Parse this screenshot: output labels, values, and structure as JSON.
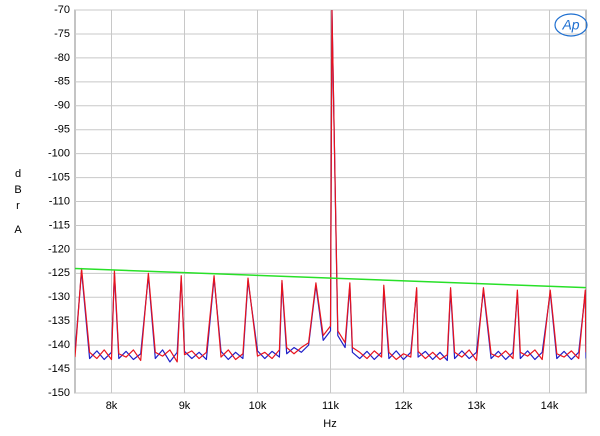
{
  "chart_data": {
    "type": "line",
    "logo": "Ap",
    "xlabel": "Hz",
    "ylabel": [
      "d",
      "B",
      "r",
      "A"
    ],
    "xlim": [
      7500,
      14500
    ],
    "ylim": [
      -150,
      -70
    ],
    "xticks": [
      {
        "value": 8000,
        "label": "8k"
      },
      {
        "value": 9000,
        "label": "9k"
      },
      {
        "value": 10000,
        "label": "10k"
      },
      {
        "value": 11000,
        "label": "11k"
      },
      {
        "value": 12000,
        "label": "12k"
      },
      {
        "value": 13000,
        "label": "13k"
      },
      {
        "value": 14000,
        "label": "14k"
      }
    ],
    "yticks": [
      -70,
      -75,
      -80,
      -85,
      -90,
      -95,
      -100,
      -105,
      -110,
      -115,
      -120,
      -125,
      -130,
      -135,
      -140,
      -145,
      -150
    ],
    "grid": true,
    "x": [
      7500,
      7590,
      7700,
      7800,
      7900,
      8000,
      8040,
      8100,
      8200,
      8300,
      8400,
      8505,
      8600,
      8700,
      8800,
      8900,
      8955,
      9000,
      9100,
      9200,
      9300,
      9405,
      9500,
      9600,
      9700,
      9800,
      9870,
      10000,
      10100,
      10200,
      10300,
      10335,
      10400,
      10500,
      10600,
      10700,
      10800,
      10900,
      11000,
      11020,
      11100,
      11200,
      11265,
      11300,
      11400,
      11500,
      11600,
      11700,
      11730,
      11800,
      11900,
      12000,
      12100,
      12180,
      12200,
      12300,
      12400,
      12500,
      12600,
      12645,
      12700,
      12800,
      12900,
      13000,
      13095,
      13200,
      13300,
      13400,
      13500,
      13560,
      13600,
      13700,
      13800,
      13900,
      14010,
      14100,
      14200,
      14300,
      14400,
      14490,
      14500
    ],
    "series": [
      {
        "color": "#2020c8",
        "values": [
          -141.5,
          -124.5,
          -142.8,
          -141.2,
          -143,
          -141.5,
          -125,
          -142.8,
          -141.3,
          -143,
          -141.8,
          -125.5,
          -142.8,
          -141,
          -143.5,
          -141.5,
          -126,
          -141.3,
          -142.8,
          -141.5,
          -143,
          -126,
          -141.3,
          -143,
          -141.5,
          -142.8,
          -126.5,
          -141.2,
          -142.8,
          -141.3,
          -142.5,
          -127,
          -141.8,
          -140.5,
          -141.5,
          -140,
          -127.5,
          -139,
          -137,
          -70,
          -138,
          -140.5,
          -127.5,
          -141.5,
          -142.8,
          -141.3,
          -143,
          -141.5,
          -128,
          -142.8,
          -141.2,
          -143,
          -141.5,
          -128.5,
          -142.5,
          -141.3,
          -143,
          -141.5,
          -143.2,
          -128.5,
          -142.8,
          -141.2,
          -142.8,
          -141.5,
          -128.5,
          -142.8,
          -141.3,
          -143,
          -141.5,
          -129,
          -142.8,
          -141.2,
          -143,
          -141.5,
          -129,
          -142.8,
          -141.3,
          -143,
          -141.5,
          -129,
          -142.8
        ]
      },
      {
        "color": "#e8141e",
        "values": [
          -142.5,
          -124,
          -141.5,
          -142.8,
          -141,
          -143,
          -124.5,
          -141.8,
          -142.5,
          -141,
          -143.2,
          -125,
          -141.5,
          -142.3,
          -141,
          -143.5,
          -125.5,
          -142,
          -141.2,
          -142.8,
          -141.5,
          -125.5,
          -142.5,
          -141,
          -143,
          -141.8,
          -126,
          -142.3,
          -141.5,
          -142.8,
          -141,
          -126.5,
          -140.5,
          -141.8,
          -140.5,
          -139.5,
          -127,
          -138,
          -136,
          -70,
          -137,
          -139.5,
          -127,
          -140.5,
          -141.5,
          -142.8,
          -141.2,
          -142.5,
          -127.5,
          -141.5,
          -143,
          -141.8,
          -142.5,
          -128,
          -141.3,
          -142.8,
          -141.5,
          -143,
          -142,
          -128,
          -141.5,
          -142.5,
          -141,
          -143.2,
          -128,
          -141.8,
          -142.5,
          -141.2,
          -142.8,
          -128.5,
          -141.5,
          -142.3,
          -141,
          -143,
          -128.5,
          -141.8,
          -142.5,
          -141.2,
          -142.8,
          -128.5,
          -141.5
        ]
      },
      {
        "color": "#28e028",
        "x": [
          7500,
          14500
        ],
        "values": [
          -124,
          -128
        ]
      }
    ]
  }
}
